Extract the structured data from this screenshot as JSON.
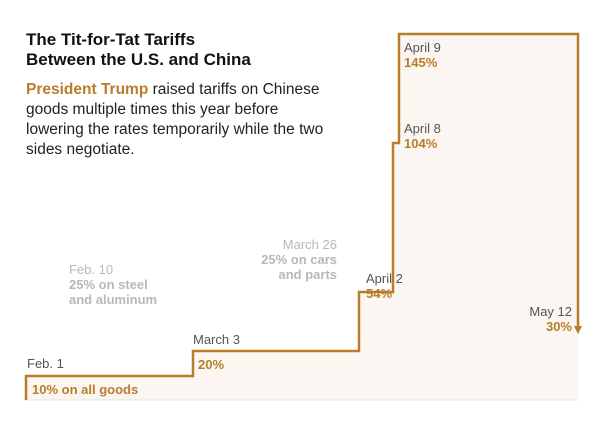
{
  "title_line1": "The Tit-for-Tat Tariffs",
  "title_line2": "Between the U.S. and China",
  "subtitle_highlight": "President Trump",
  "subtitle_rest": " raised tariffs on Chinese goods multiple times this year before lowering the rates temporarily while the two sides negotiate.",
  "colors": {
    "accent": "#b87d2a",
    "faded": "#b8b8b8",
    "fill": "#fbf6f1",
    "gridline": "#d7d7d7"
  },
  "chart_data": {
    "type": "line",
    "series": [
      {
        "x": [
          "Feb. 1",
          "March 3",
          "April 2",
          "April 8",
          "April 9",
          "May 12"
        ],
        "values": [
          10,
          20,
          54,
          104,
          145,
          30
        ]
      }
    ],
    "annotations": [
      {
        "date": "Feb. 1",
        "value_label": "10% on all goods",
        "emphasis": "primary"
      },
      {
        "date": "Feb. 10",
        "value_label": "25% on steel and aluminum",
        "emphasis": "faded"
      },
      {
        "date": "March 3",
        "value_label": "20%",
        "emphasis": "primary"
      },
      {
        "date": "March 26",
        "value_label": "25% on cars and parts",
        "emphasis": "faded"
      },
      {
        "date": "April 2",
        "value_label": "54%",
        "emphasis": "primary"
      },
      {
        "date": "April 8",
        "value_label": "104%",
        "emphasis": "primary"
      },
      {
        "date": "April 9",
        "value_label": "145%",
        "emphasis": "primary"
      },
      {
        "date": "May 12",
        "value_label": "30%",
        "emphasis": "primary"
      }
    ]
  },
  "labels": {
    "feb1_date": "Feb. 1",
    "feb1_value": "10% on all goods",
    "feb10_date": "Feb. 10",
    "feb10_value_l1": "25% on steel",
    "feb10_value_l2": "and aluminum",
    "mar3_date": "March 3",
    "mar3_value": "20%",
    "mar26_date": "March 26",
    "mar26_value_l1": "25% on cars",
    "mar26_value_l2": "and parts",
    "apr2_date": "April 2",
    "apr2_value": "54%",
    "apr8_date": "April 8",
    "apr8_value": "104%",
    "apr9_date": "April 9",
    "apr9_value": "145%",
    "may12_date": "May 12",
    "may12_value": "30%"
  }
}
